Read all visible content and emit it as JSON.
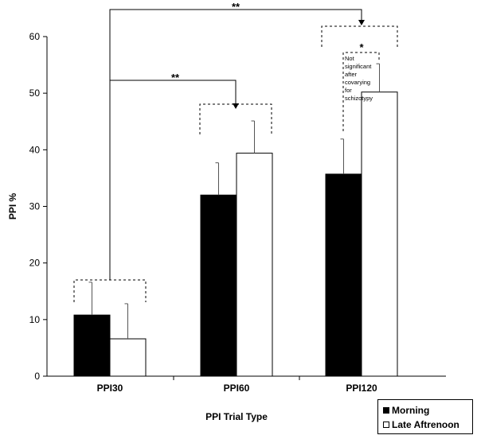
{
  "chart_data": {
    "type": "bar",
    "xlabel": "PPI Trial Type",
    "ylabel": "PPI %",
    "ylim": [
      0,
      60
    ],
    "yticks": [
      0,
      10,
      20,
      30,
      40,
      50,
      60
    ],
    "categories": [
      "PPI30",
      "PPI60",
      "PPI120"
    ],
    "series": [
      {
        "name": "Morning",
        "values": [
          10.8,
          32.0,
          35.7
        ],
        "errors": [
          5.8,
          5.7,
          6.2
        ],
        "color": "#000000"
      },
      {
        "name": "Late Aftrenoon",
        "values": [
          6.6,
          39.4,
          50.2
        ],
        "errors": [
          6.2,
          5.7,
          5.0
        ],
        "color": "#ffffff"
      }
    ],
    "legend": {
      "position": "bottom-right"
    },
    "grid": false,
    "annotations": {
      "sig_top": "**",
      "sig_mid": "**",
      "sig_small": "*",
      "note": [
        "Not",
        "significant",
        "after",
        "covarying",
        "for",
        "schizotypy"
      ]
    }
  }
}
